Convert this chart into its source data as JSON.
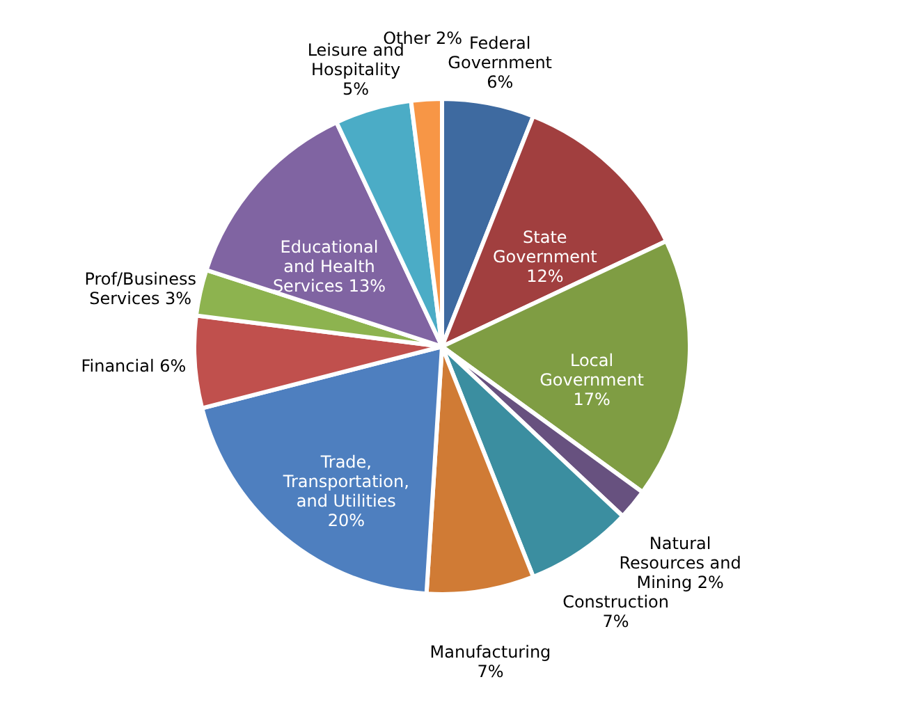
{
  "chart_data": {
    "type": "pie",
    "categories": [
      "Federal Government",
      "State Government",
      "Local Government",
      "Natural Resources and Mining",
      "Construction",
      "Manufacturing",
      "Trade, Transportation, and Utilities",
      "Financial",
      "Prof/Business Services",
      "Educational and Health Services",
      "Leisure and Hospitality",
      "Other"
    ],
    "values": [
      6,
      12,
      17,
      2,
      7,
      7,
      20,
      6,
      3,
      13,
      5,
      2
    ],
    "value_labels": [
      "6%",
      "12%",
      "17%",
      "2%",
      "7%",
      "7%",
      "20%",
      "6%",
      "3%",
      "13%",
      "5%",
      "2%"
    ],
    "colors": [
      "#3e6aa0",
      "#a13f3f",
      "#7f9d43",
      "#67517f",
      "#3b8ea0",
      "#d07b35",
      "#4e7fbf",
      "#c0504d",
      "#8db34f",
      "#8064a2",
      "#4bacc6",
      "#f79646"
    ],
    "legend": false
  }
}
